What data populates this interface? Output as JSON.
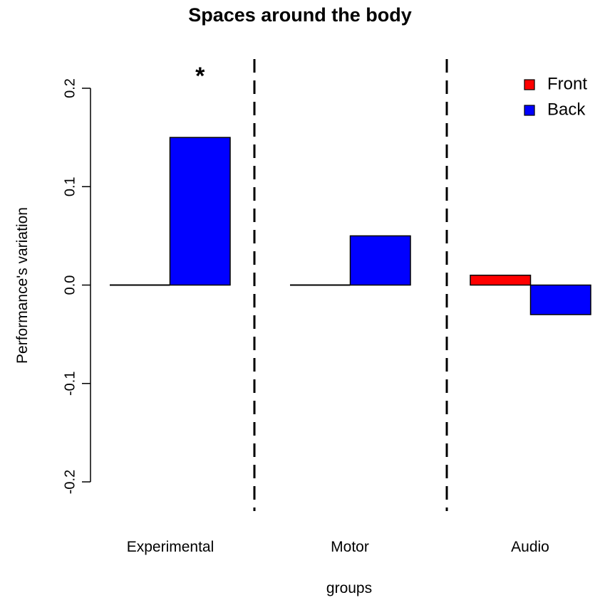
{
  "chart_data": {
    "type": "bar",
    "title": "Spaces around the body",
    "xlabel": "groups",
    "ylabel": "Performance's variation",
    "categories": [
      "Experimental",
      "Motor",
      "Audio"
    ],
    "series": [
      {
        "name": "Front",
        "values": [
          0.0,
          0.0,
          0.01
        ],
        "color": "#ff0000"
      },
      {
        "name": "Back",
        "values": [
          0.15,
          0.05,
          -0.03
        ],
        "color": "#0000ff"
      }
    ],
    "ylim": [
      -0.2,
      0.2
    ],
    "yticks": [
      "-0.2",
      "-0.1",
      "0.0",
      "0.1",
      "0.2"
    ],
    "ytick_values": [
      -0.2,
      -0.1,
      0.0,
      0.1,
      0.2
    ],
    "annotations": [
      {
        "text": "*",
        "category": "Experimental",
        "series": "Back"
      }
    ],
    "separators": "dashed vertical lines between groups",
    "grid": false,
    "legend_position": "top-right"
  }
}
